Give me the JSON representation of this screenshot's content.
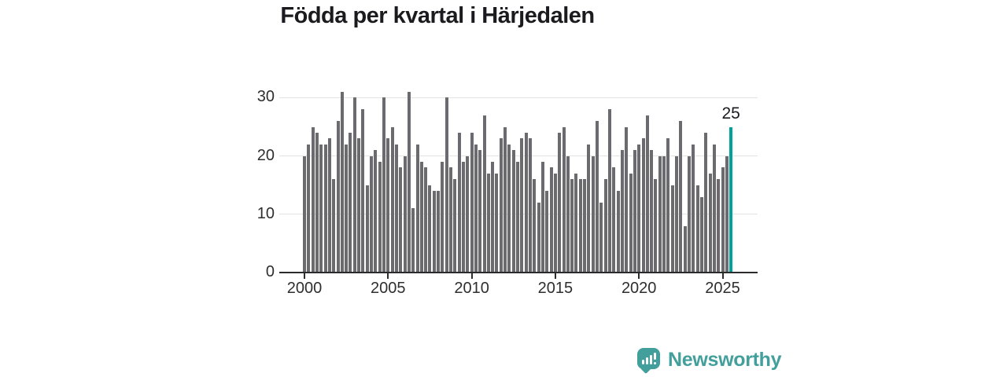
{
  "title": "Födda per kvartal i Härjedalen",
  "annotation": {
    "value_label": "25"
  },
  "footer": {
    "brand": "Newsworthy",
    "logo_icon": "speech-bubble-bar-chart-icon"
  },
  "colors": {
    "bar": "#6a6a6f",
    "highlight": "#00a39c",
    "axis": "#2b2b2b",
    "grid": "#e3e3e3",
    "title_text": "#1b1b1f",
    "tick_text": "#2e2e2e",
    "logo": "#429f9b"
  },
  "chart_data": {
    "type": "bar",
    "title": "Födda per kvartal i Härjedalen",
    "x_unit": "quarter",
    "start": "2000-Q1",
    "end": "2025-Q3",
    "x_tick_labels": [
      "2000",
      "2005",
      "2010",
      "2015",
      "2020",
      "2025"
    ],
    "y_ticks": [
      0,
      10,
      20,
      30
    ],
    "ylim": [
      0,
      32
    ],
    "grid": "horizontal",
    "legend": "none",
    "highlight_last_bar": true,
    "highlight_last_value": 25,
    "series": [
      {
        "name": "Födda",
        "values": [
          20,
          22,
          25,
          24,
          22,
          22,
          23,
          16,
          26,
          31,
          22,
          24,
          30,
          23,
          28,
          15,
          20,
          21,
          19,
          30,
          23,
          25,
          22,
          18,
          20,
          31,
          11,
          22,
          19,
          18,
          15,
          14,
          14,
          19,
          30,
          18,
          16,
          24,
          19,
          20,
          24,
          22,
          21,
          27,
          17,
          19,
          17,
          23,
          25,
          22,
          21,
          19,
          23,
          24,
          23,
          16,
          12,
          19,
          14,
          18,
          17,
          24,
          25,
          20,
          16,
          17,
          16,
          16,
          22,
          20,
          26,
          12,
          16,
          28,
          18,
          14,
          21,
          25,
          17,
          21,
          22,
          23,
          27,
          21,
          16,
          20,
          20,
          23,
          15,
          20,
          26,
          8,
          20,
          22,
          15,
          13,
          24,
          17,
          22,
          16,
          18,
          20,
          25
        ]
      }
    ]
  }
}
